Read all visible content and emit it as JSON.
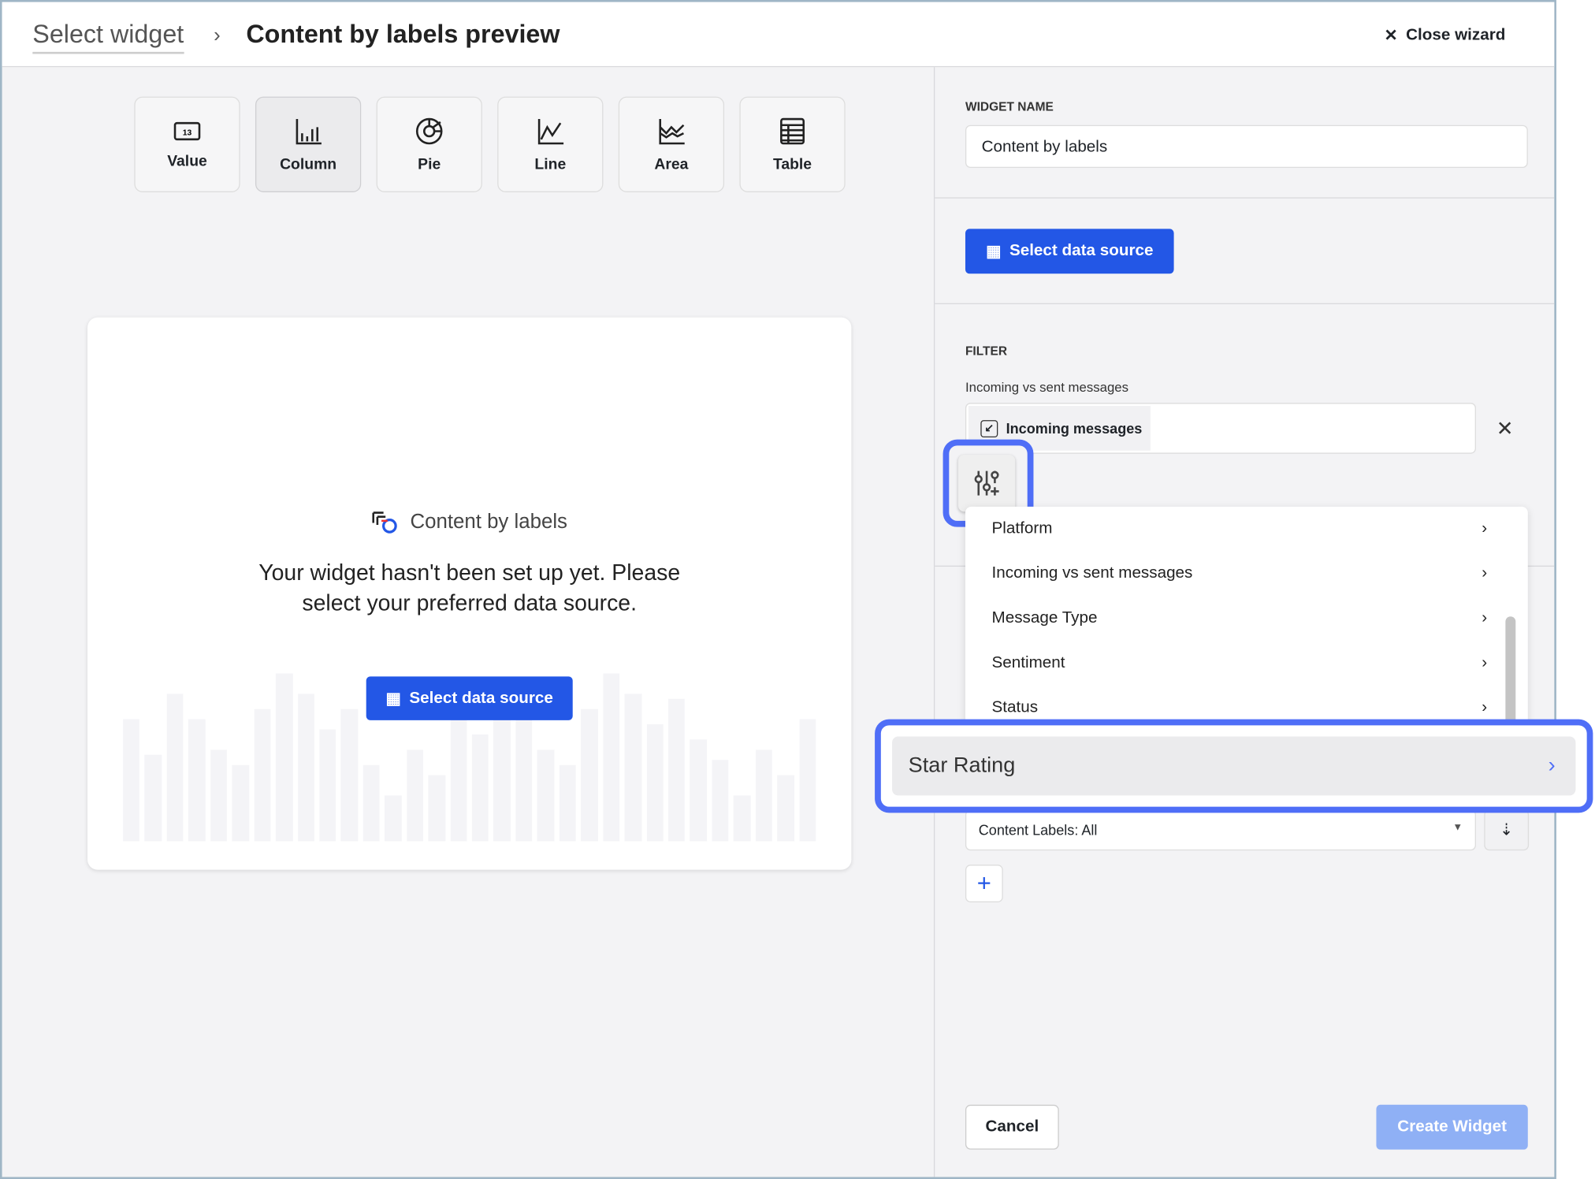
{
  "header": {
    "breadcrumb_parent": "Select widget",
    "breadcrumb_separator": "›",
    "title": "Content by labels preview",
    "close_label": "Close wizard"
  },
  "widget_types": [
    {
      "label": "Value",
      "icon": "value-icon"
    },
    {
      "label": "Column",
      "icon": "column-chart-icon",
      "selected": true
    },
    {
      "label": "Pie",
      "icon": "pie-chart-icon"
    },
    {
      "label": "Line",
      "icon": "line-chart-icon"
    },
    {
      "label": "Area",
      "icon": "area-chart-icon"
    },
    {
      "label": "Table",
      "icon": "table-icon"
    }
  ],
  "preview": {
    "title": "Content by labels",
    "message": "Your widget hasn't been set up yet. Please select your preferred data source.",
    "button": "Select data source"
  },
  "panel": {
    "widget_name_label": "WIDGET NAME",
    "widget_name_value": "Content by labels",
    "select_source": "Select data source",
    "filter_label": "FILTER",
    "filter_sub": "Incoming vs sent messages",
    "filter_chip": "Incoming messages",
    "menu_items": [
      "Platform",
      "Incoming vs sent messages",
      "Message Type",
      "Sentiment",
      "Status"
    ],
    "highlighted_item": "Star Rating",
    "dropdown_value": "Content Labels: All",
    "cancel": "Cancel",
    "create": "Create Widget"
  },
  "colors": {
    "accent": "#2357e6",
    "highlight": "#4f6ef7",
    "disabled": "#8fb0f5"
  }
}
